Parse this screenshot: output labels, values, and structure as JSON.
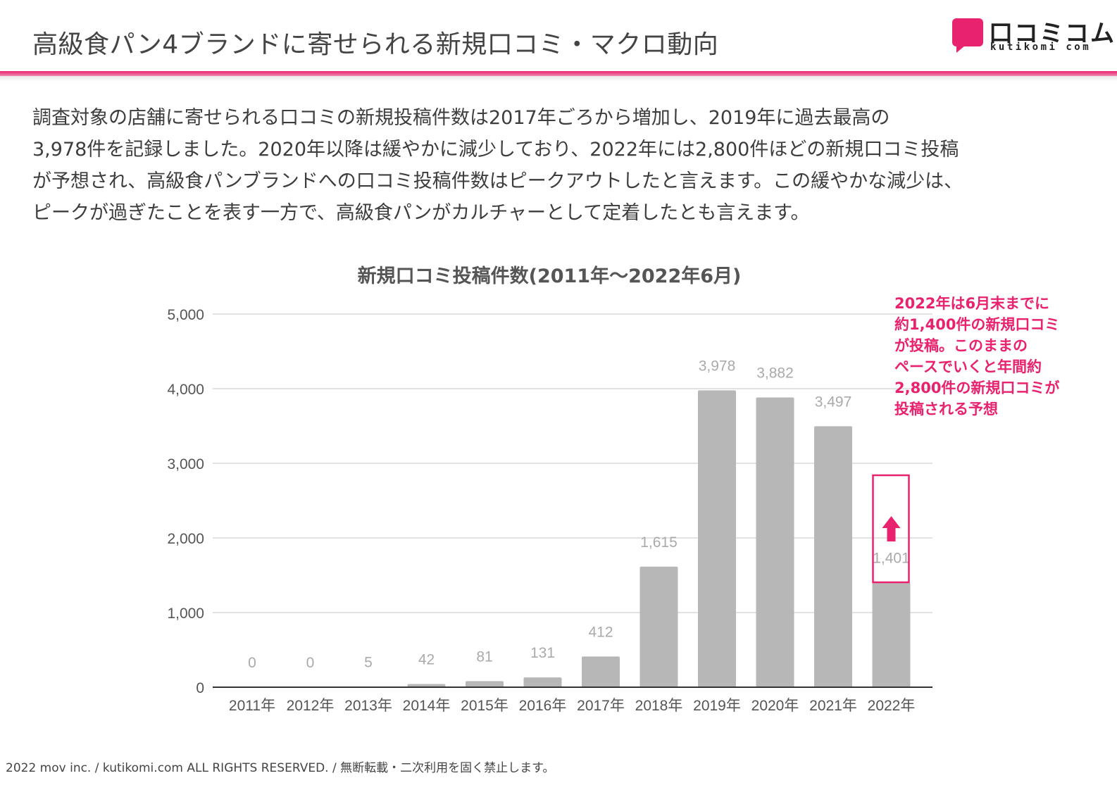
{
  "header": {
    "title": "高級食パン4ブランドに寄せられる新規口コミ・マクロ動向",
    "logo_text": "口コミコム",
    "logo_sub": "kutikomi com"
  },
  "summary": {
    "lines": [
      "調査対象の店舗に寄せられる口コミの新規投稿件数は2017年ごろから増加し、2019年に過去最高の",
      "3,978件を記録しました。2020年以降は緩やかに減少しており、2022年には2,800件ほどの新規口コミ投稿",
      "が予想され、高級食パンブランドへの口コミ投稿件数はピークアウトしたと言えます。この緩やかな減少は、",
      "ピークが過ぎたことを表す一方で、高級食パンがカルチャーとして定着したとも言えます。"
    ]
  },
  "chart_data": {
    "type": "bar",
    "title": "新規口コミ投稿件数(2011年～2022年6月)",
    "categories": [
      "2011年",
      "2012年",
      "2013年",
      "2014年",
      "2015年",
      "2016年",
      "2017年",
      "2018年",
      "2019年",
      "2020年",
      "2021年",
      "2022年"
    ],
    "values": [
      0,
      0,
      5,
      42,
      81,
      131,
      412,
      1615,
      3978,
      3882,
      3497,
      1401
    ],
    "data_labels": [
      "0",
      "0",
      "5",
      "42",
      "81",
      "131",
      "412",
      "1,615",
      "3,978",
      "3,882",
      "3,497",
      "1,401"
    ],
    "y_ticks": [
      0,
      1000,
      2000,
      3000,
      4000,
      5000
    ],
    "y_tick_labels": [
      "0",
      "1,000",
      "2,000",
      "3,000",
      "4,000",
      "5,000"
    ],
    "ylim": [
      0,
      5000
    ],
    "xlabel": "",
    "ylabel": "",
    "grid": true,
    "bar_color": "#b7b7b7",
    "highlight_category": "2022年",
    "annotation": {
      "lines": [
        "2022年は6月末までに",
        "約1,400件の新規口コミ",
        "が投稿。このままの",
        "ペースでいくと年間約",
        "2,800件の新規口コミが",
        "投稿される予想"
      ],
      "color": "#e8226e"
    }
  },
  "colors": {
    "accent": "#e8226e",
    "text": "#3d3d3d",
    "grid": "#d9d9d9",
    "bar": "#b7b7b7",
    "data_label": "#aaaaaa"
  },
  "footer": {
    "text": "2022 mov inc. / kutikomi.com ALL RIGHTS RESERVED. / 無断転載・二次利用を固く禁止します。"
  }
}
